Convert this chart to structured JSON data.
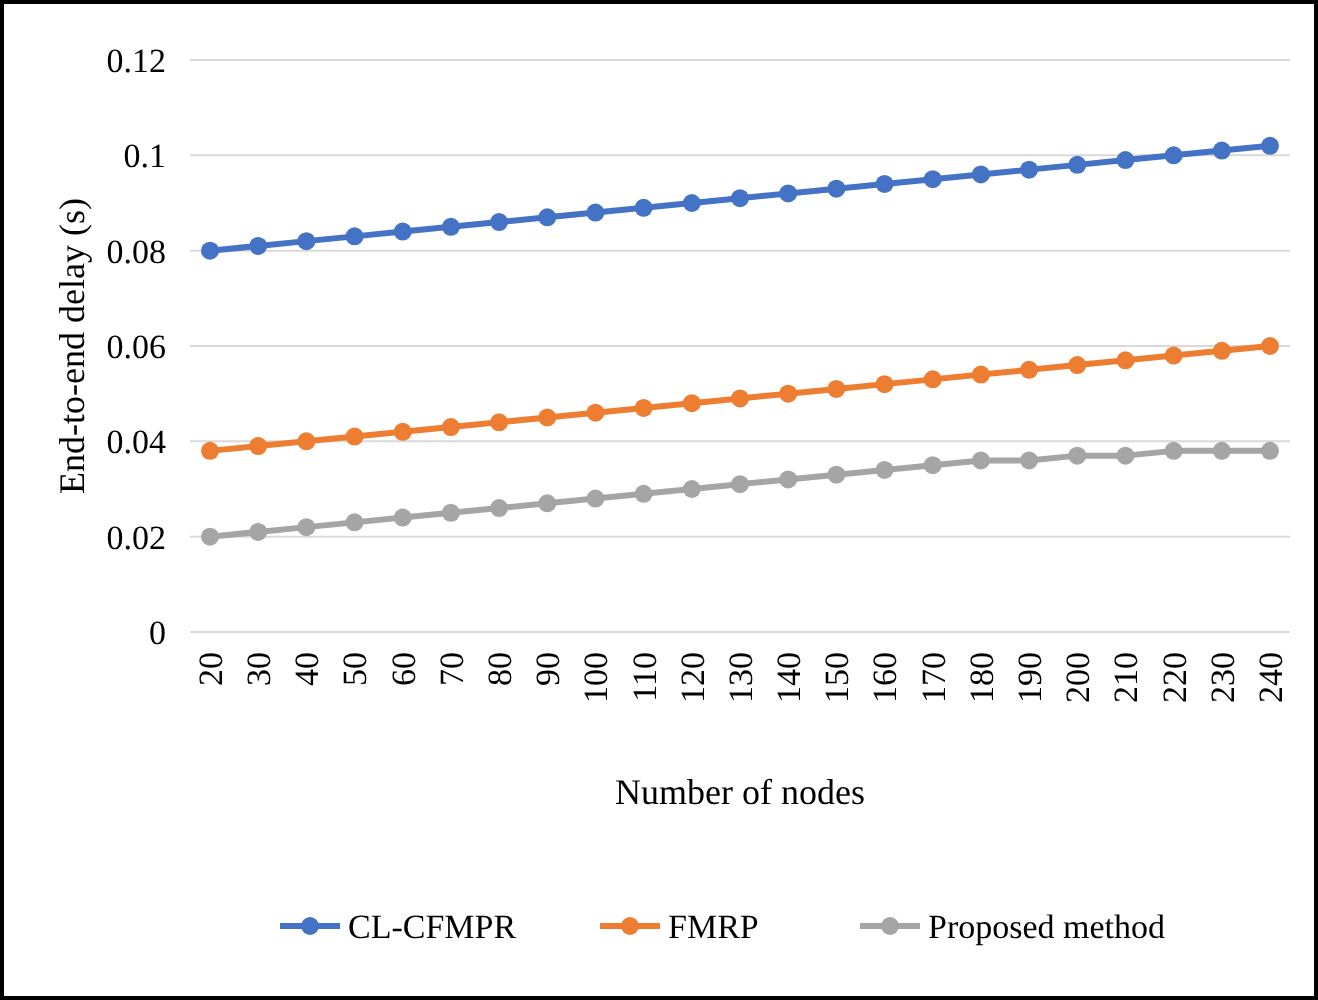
{
  "chart_data": {
    "type": "line",
    "xlabel": "Number of nodes",
    "ylabel": "End-to-end delay (s)",
    "categories": [
      "20",
      "30",
      "40",
      "50",
      "60",
      "70",
      "80",
      "90",
      "100",
      "110",
      "120",
      "130",
      "140",
      "150",
      "160",
      "170",
      "180",
      "190",
      "200",
      "210",
      "220",
      "230",
      "240"
    ],
    "series": [
      {
        "name": "CL-CFMPR",
        "color": "#4472c4",
        "values": [
          0.08,
          0.081,
          0.082,
          0.083,
          0.084,
          0.085,
          0.086,
          0.087,
          0.088,
          0.089,
          0.09,
          0.091,
          0.092,
          0.093,
          0.094,
          0.095,
          0.096,
          0.097,
          0.098,
          0.099,
          0.1,
          0.101,
          0.102
        ]
      },
      {
        "name": "FMRP",
        "color": "#ed7d31",
        "values": [
          0.038,
          0.039,
          0.04,
          0.041,
          0.042,
          0.043,
          0.044,
          0.045,
          0.046,
          0.047,
          0.048,
          0.049,
          0.05,
          0.051,
          0.052,
          0.053,
          0.054,
          0.055,
          0.056,
          0.057,
          0.058,
          0.059,
          0.06
        ]
      },
      {
        "name": "Proposed method",
        "color": "#a5a5a5",
        "values": [
          0.02,
          0.021,
          0.022,
          0.023,
          0.024,
          0.025,
          0.026,
          0.027,
          0.028,
          0.029,
          0.03,
          0.031,
          0.032,
          0.033,
          0.034,
          0.035,
          0.036,
          0.036,
          0.037,
          0.037,
          0.038,
          0.038,
          0.038
        ]
      }
    ],
    "ylim": [
      0,
      0.12
    ],
    "yticks": [
      0,
      0.02,
      0.04,
      0.06,
      0.08,
      0.1,
      0.12
    ],
    "grid": "y",
    "legend": "bottom",
    "marker": "circle",
    "line_style": "solid"
  }
}
